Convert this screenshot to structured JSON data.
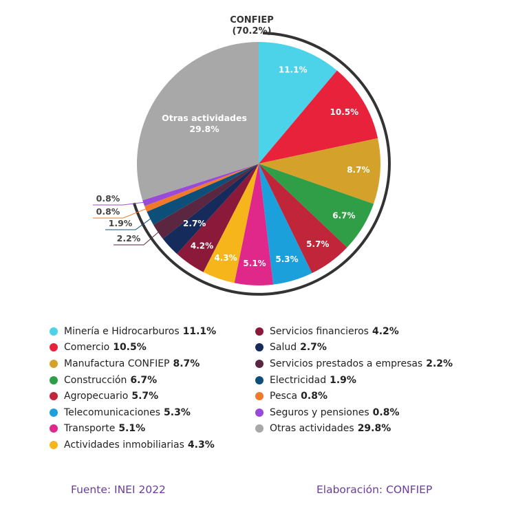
{
  "chart_data": {
    "type": "pie",
    "title": "CONFIEP",
    "group_label": "CONFIEP",
    "group_value": "(70.2%)",
    "slices": [
      {
        "name": "Minería e Hidrocarburos",
        "value": 11.1,
        "label": "11.1%",
        "color": "#4cd3e9"
      },
      {
        "name": "Comercio",
        "value": 10.5,
        "label": "10.5%",
        "color": "#e8223a"
      },
      {
        "name": "Manufactura CONFIEP",
        "value": 8.7,
        "label": "8.7%",
        "color": "#d4a22a"
      },
      {
        "name": "Construcción",
        "value": 6.7,
        "label": "6.7%",
        "color": "#2f9e46"
      },
      {
        "name": "Agropecuario",
        "value": 5.7,
        "label": "5.7%",
        "color": "#c0253a"
      },
      {
        "name": "Telecomunicaciones",
        "value": 5.3,
        "label": "5.3%",
        "color": "#1ba0dc"
      },
      {
        "name": "Transporte",
        "value": 5.1,
        "label": "5.1%",
        "color": "#e0288a"
      },
      {
        "name": "Actividades inmobiliarias",
        "value": 4.3,
        "label": "4.3%",
        "color": "#f7b51c"
      },
      {
        "name": "Servicios financieros",
        "value": 4.2,
        "label": "4.2%",
        "color": "#8b1a3a"
      },
      {
        "name": "Salud",
        "value": 2.7,
        "label": "2.7%",
        "color": "#142b5c"
      },
      {
        "name": "Servicios prestados a empresas",
        "value": 2.2,
        "label": "2.2%",
        "color": "#5a2640"
      },
      {
        "name": "Electricidad",
        "value": 1.9,
        "label": "1.9%",
        "color": "#0e4f7a"
      },
      {
        "name": "Pesca",
        "value": 0.8,
        "label": "0.8%",
        "color": "#f07a2a"
      },
      {
        "name": "Seguros y pensiones",
        "value": 0.8,
        "label": "0.8%",
        "color": "#9a4ad8"
      },
      {
        "name": "Otras actividades",
        "value": 29.8,
        "label": "29.8%",
        "color": "#a8a8a8"
      }
    ],
    "legend_placement": "bottom"
  },
  "footer": {
    "source": "Fuente: INEI 2022",
    "credit": "Elaboración: CONFIEP"
  }
}
